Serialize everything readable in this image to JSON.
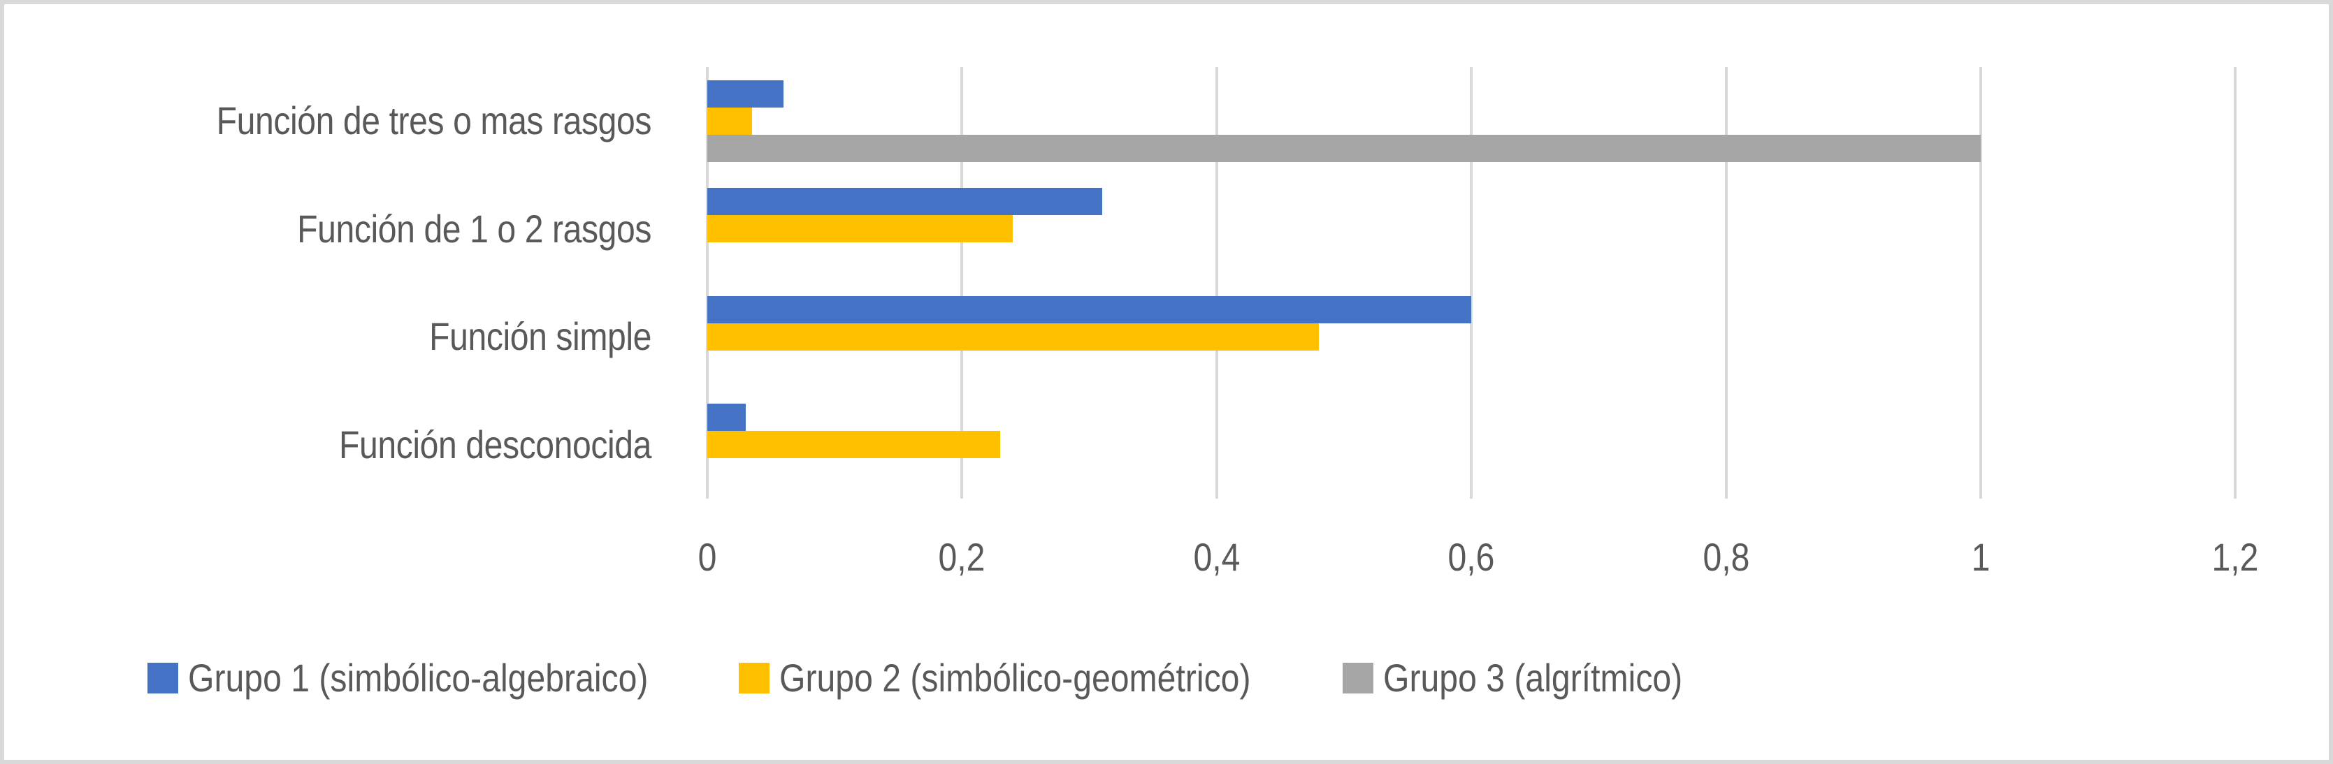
{
  "chart_data": {
    "type": "bar",
    "orientation": "horizontal",
    "title": "",
    "xlabel": "",
    "ylabel": "",
    "xlim": [
      0,
      1.2
    ],
    "x_ticks": [
      "0",
      "0,2",
      "0,4",
      "0,6",
      "0,8",
      "1",
      "1,2"
    ],
    "grid": true,
    "legend_position": "bottom",
    "categories": [
      "Función de tres o mas rasgos",
      "Función de 1 o 2 rasgos",
      "Función simple",
      "Función desconocida"
    ],
    "series": [
      {
        "name": "Grupo 1 (simbólico-algebraico)",
        "color": "#4472C4",
        "values": [
          0.06,
          0.31,
          0.6,
          0.03
        ]
      },
      {
        "name": "Grupo 2 (simbólico-geométrico)",
        "color": "#FFC000",
        "values": [
          0.035,
          0.24,
          0.48,
          0.23
        ]
      },
      {
        "name": "Grupo 3 (algrítmico)",
        "color": "#A5A5A5",
        "values": [
          1.0,
          0,
          0,
          0
        ]
      }
    ]
  },
  "axis": {
    "ticks": [
      {
        "label": "0",
        "value": 0
      },
      {
        "label": "0,2",
        "value": 0.2
      },
      {
        "label": "0,4",
        "value": 0.4
      },
      {
        "label": "0,6",
        "value": 0.6
      },
      {
        "label": "0,8",
        "value": 0.8
      },
      {
        "label": "1",
        "value": 1.0
      },
      {
        "label": "1,2",
        "value": 1.2
      }
    ]
  },
  "colors": {
    "text": "#595959",
    "grid": "#D9D9D9",
    "frame": "#D9D9D9"
  }
}
